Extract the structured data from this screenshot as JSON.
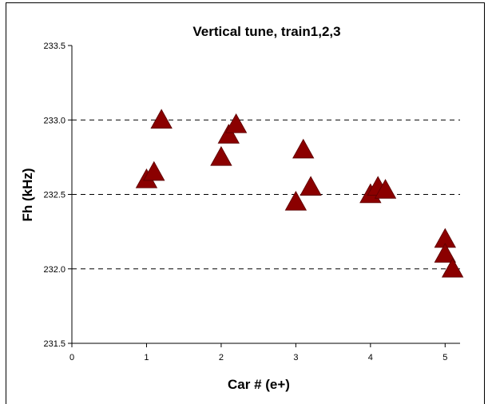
{
  "chart_data": {
    "type": "scatter",
    "title": "Vertical tune, train1,2,3",
    "xlabel": "Car # (e+)",
    "ylabel": "Fh (kHz)",
    "xlim": [
      0,
      5.2
    ],
    "ylim": [
      231.5,
      233.5
    ],
    "x_ticks": [
      "0",
      "1",
      "2",
      "3",
      "4",
      "5"
    ],
    "y_ticks": [
      "231.5",
      "232.0",
      "232.5",
      "233.0",
      "233.5"
    ],
    "grid": "horizontal dashed at 232.0, 232.5, 233.0",
    "marker": "triangle",
    "marker_color": "#8b0000",
    "series": [
      {
        "points": [
          {
            "x": 1.0,
            "y": 232.6
          },
          {
            "x": 1.1,
            "y": 232.65
          },
          {
            "x": 1.2,
            "y": 233.0
          },
          {
            "x": 2.0,
            "y": 232.75
          },
          {
            "x": 2.1,
            "y": 232.9
          },
          {
            "x": 2.2,
            "y": 232.97
          },
          {
            "x": 3.0,
            "y": 232.45
          },
          {
            "x": 3.1,
            "y": 232.8
          },
          {
            "x": 3.2,
            "y": 232.55
          },
          {
            "x": 4.0,
            "y": 232.5
          },
          {
            "x": 4.1,
            "y": 232.55
          },
          {
            "x": 4.2,
            "y": 232.53
          },
          {
            "x": 5.0,
            "y": 232.2
          },
          {
            "x": 5.0,
            "y": 232.1
          },
          {
            "x": 5.1,
            "y": 232.0
          }
        ]
      }
    ]
  }
}
